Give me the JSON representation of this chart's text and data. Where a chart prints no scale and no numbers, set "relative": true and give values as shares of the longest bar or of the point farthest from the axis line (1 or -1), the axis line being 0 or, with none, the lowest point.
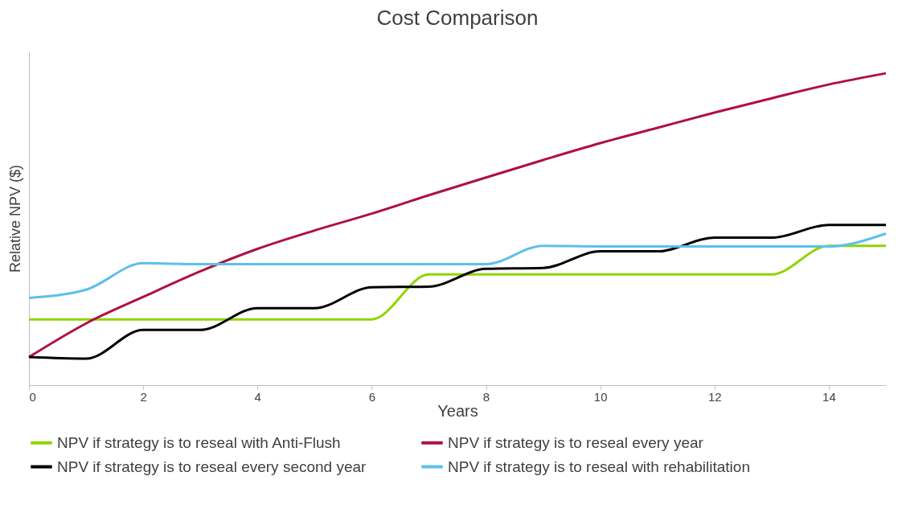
{
  "chart_data": {
    "type": "line",
    "title": "Cost Comparison",
    "xlabel": "Years",
    "ylabel": "Relative NPV ($)",
    "relative": true,
    "x": [
      0,
      1,
      2,
      3,
      4,
      5,
      6,
      7,
      8,
      9,
      10,
      11,
      12,
      13,
      14,
      15
    ],
    "xlim": [
      0,
      15
    ],
    "xticks": [
      0,
      2,
      4,
      6,
      8,
      10,
      12,
      14
    ],
    "grid": false,
    "legend": "bottom",
    "marker": "none",
    "line_style": "solid",
    "series": [
      {
        "name": "NPV if strategy is to reseal with Anti-Flush",
        "color": "#8fd400",
        "values": [
          0.211,
          0.211,
          0.211,
          0.211,
          0.211,
          0.211,
          0.211,
          0.355,
          0.355,
          0.355,
          0.355,
          0.355,
          0.355,
          0.355,
          0.447,
          0.447
        ]
      },
      {
        "name": "NPV if strategy is to reseal every year",
        "color": "#b0103f",
        "values": [
          0.09,
          0.198,
          0.283,
          0.365,
          0.437,
          0.496,
          0.55,
          0.609,
          0.666,
          0.722,
          0.776,
          0.825,
          0.874,
          0.92,
          0.964,
          1
        ]
      },
      {
        "name": "NPV if strategy is to reseal every second year",
        "color": "#000000",
        "values": [
          0.09,
          0.085,
          0.177,
          0.177,
          0.247,
          0.247,
          0.314,
          0.316,
          0.373,
          0.376,
          0.429,
          0.429,
          0.473,
          0.473,
          0.514,
          0.514
        ]
      },
      {
        "name": "NPV if strategy is to reseal with rehabilitation",
        "color": "#5bc0eb",
        "values": [
          0.28,
          0.306,
          0.391,
          0.388,
          0.388,
          0.388,
          0.388,
          0.388,
          0.388,
          0.447,
          0.445,
          0.445,
          0.445,
          0.445,
          0.445,
          0.486
        ]
      }
    ]
  }
}
